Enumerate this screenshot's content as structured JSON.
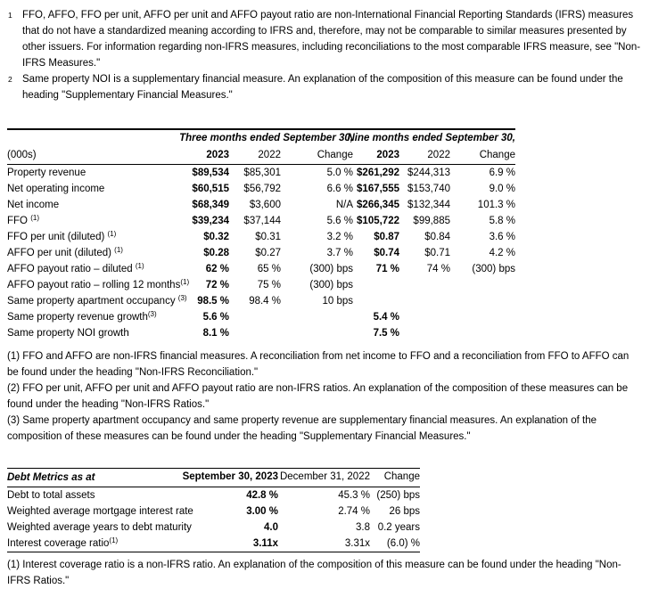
{
  "colors": {
    "text": "#000000",
    "background": "#ffffff",
    "rule": "#000000"
  },
  "intro_notes": [
    {
      "marker": "1",
      "text": "FFO, AFFO, FFO per unit, AFFO per unit and AFFO payout ratio are non-International Financial Reporting Standards (IFRS) measures that do not have a standardized meaning according to IFRS and, therefore, may not be comparable to similar measures presented by other issuers. For information regarding non-IFRS measures, including reconciliations to the most comparable IFRS measure, see \"Non-IFRS Measures.\""
    },
    {
      "marker": "2",
      "text": "Same property NOI is a supplementary financial measure. An explanation of the composition of this measure can be found under the heading \"Supplementary Financial Measures.\""
    }
  ],
  "results_table": {
    "period_headers": {
      "three_months": "Three months ended September 30,",
      "nine_months": "Nine months ended September 30,"
    },
    "units_label": "(000s)",
    "columns": {
      "c1": "2023",
      "c2": "2022",
      "c3": "Change",
      "c4": "2023",
      "c5": "2022",
      "c6": "Change"
    },
    "rows": [
      {
        "label": "Property revenue",
        "sup": "",
        "c1": "$89,534",
        "c2": "$85,301",
        "c3": "5.0 %",
        "c4": "$261,292",
        "c5": "$244,313",
        "c6": "6.9 %"
      },
      {
        "label": "Net operating income",
        "sup": "",
        "c1": "$60,515",
        "c2": "$56,792",
        "c3": "6.6 %",
        "c4": "$167,555",
        "c5": "$153,740",
        "c6": "9.0 %"
      },
      {
        "label": "Net income",
        "sup": "",
        "c1": "$68,349",
        "c2": "$3,600",
        "c3": "N/A",
        "c4": "$266,345",
        "c5": "$132,344",
        "c6": "101.3 %"
      },
      {
        "label": "FFO ",
        "sup": "(1)",
        "c1": "$39,234",
        "c2": "$37,144",
        "c3": "5.6 %",
        "c4": "$105,722",
        "c5": "$99,885",
        "c6": "5.8 %"
      },
      {
        "label": "FFO per unit (diluted) ",
        "sup": "(1)",
        "c1": "$0.32",
        "c2": "$0.31",
        "c3": "3.2 %",
        "c4": "$0.87",
        "c5": "$0.84",
        "c6": "3.6 %"
      },
      {
        "label": "AFFO per unit (diluted) ",
        "sup": "(1)",
        "c1": "$0.28",
        "c2": "$0.27",
        "c3": "3.7 %",
        "c4": "$0.74",
        "c5": "$0.71",
        "c6": "4.2 %"
      },
      {
        "label": "AFFO payout ratio – diluted ",
        "sup": "(1)",
        "c1": "62 %",
        "c2": "65 %",
        "c3": "(300) bps",
        "c4": "71 %",
        "c5": "74 %",
        "c6": "(300) bps"
      },
      {
        "label": "AFFO payout ratio – rolling 12 months",
        "sup": "(1)",
        "c1": "72 %",
        "c2": "75 %",
        "c3": "(300) bps",
        "c4": "",
        "c5": "",
        "c6": ""
      },
      {
        "label": "Same property apartment occupancy ",
        "sup": "(3)",
        "c1": "98.5 %",
        "c2": "98.4 %",
        "c3": "10 bps",
        "c4": "",
        "c5": "",
        "c6": ""
      },
      {
        "label": "Same property revenue growth",
        "sup": "(3)",
        "c1": "5.6 %",
        "c2": "",
        "c3": "",
        "c4": "5.4 %",
        "c5": "",
        "c6": ""
      },
      {
        "label": "Same property NOI growth",
        "sup": "",
        "c1": "8.1 %",
        "c2": "",
        "c3": "",
        "c4": "7.5 %",
        "c5": "",
        "c6": ""
      }
    ],
    "footnotes": [
      "(1) FFO and AFFO are non-IFRS financial measures. A reconciliation from net income to FFO and a reconciliation from FFO to AFFO can be found under the heading \"Non-IFRS Reconciliation.\"",
      "(2) FFO per unit, AFFO per unit and AFFO payout ratio are non-IFRS ratios. An explanation of the composition of these measures can be found under the heading \"Non-IFRS Ratios.\"",
      "(3) Same property apartment occupancy and same property revenue are supplementary financial measures. An explanation of the composition of these measures can be found under the heading \"Supplementary Financial Measures.\""
    ]
  },
  "debt_table": {
    "title": "Debt Metrics as at",
    "columns": {
      "c1": "September 30, 2023",
      "c2": "December 31, 2022",
      "c3": "Change"
    },
    "rows": [
      {
        "label": "Debt to total assets",
        "sup": "",
        "c1": "42.8 %",
        "c2": "45.3 %",
        "c3": "(250) bps"
      },
      {
        "label": "Weighted average mortgage interest rate",
        "sup": "",
        "c1": "3.00 %",
        "c2": "2.74 %",
        "c3": "26 bps"
      },
      {
        "label": "Weighted average years to debt maturity",
        "sup": "",
        "c1": "4.0",
        "c2": "3.8",
        "c3": "0.2 years"
      },
      {
        "label": "Interest coverage ratio",
        "sup": "(1)",
        "c1": "3.11x",
        "c2": "3.31x",
        "c3": "(6.0) %"
      }
    ],
    "footnote": "(1) Interest coverage ratio is a non-IFRS ratio. An explanation of the composition of this measure can be found under the heading \"Non-IFRS Ratios.\""
  }
}
